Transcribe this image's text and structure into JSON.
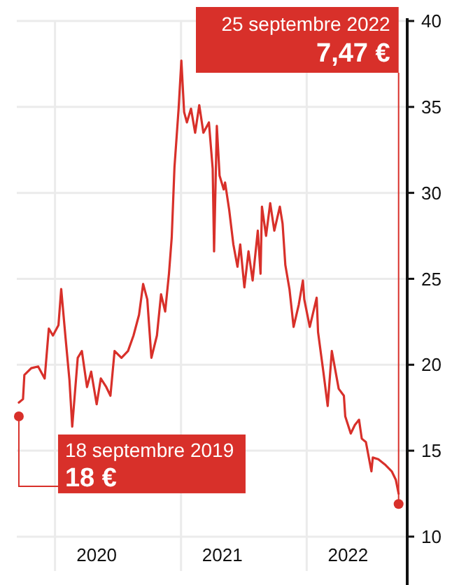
{
  "chart_data": {
    "type": "line",
    "x": [
      "2019-09-18",
      "2019-09-30",
      "2019-10-04",
      "2019-10-24",
      "2019-11-13",
      "2019-12-02",
      "2019-12-14",
      "2019-12-26",
      "2020-01-11",
      "2020-01-19",
      "2020-01-31",
      "2020-02-12",
      "2020-02-20",
      "2020-03-07",
      "2020-03-19",
      "2020-04-03",
      "2020-04-15",
      "2020-05-01",
      "2020-05-13",
      "2020-05-29",
      "2020-06-10",
      "2020-06-22",
      "2020-07-12",
      "2020-07-31",
      "2020-08-16",
      "2020-09-01",
      "2020-09-13",
      "2020-09-25",
      "2020-10-07",
      "2020-10-23",
      "2020-11-04",
      "2020-11-16",
      "2020-11-27",
      "2020-12-05",
      "2020-12-13",
      "2020-12-25",
      "2021-01-02",
      "2021-01-10",
      "2021-01-18",
      "2021-01-30",
      "2021-02-11",
      "2021-02-23",
      "2021-03-07",
      "2021-03-23",
      "2021-04-03",
      "2021-04-07",
      "2021-04-15",
      "2021-04-23",
      "2021-05-05",
      "2021-05-09",
      "2021-05-21",
      "2021-06-02",
      "2021-06-14",
      "2021-06-22",
      "2021-07-04",
      "2021-07-16",
      "2021-07-28",
      "2021-08-12",
      "2021-08-20",
      "2021-08-24",
      "2021-09-05",
      "2021-09-17",
      "2021-09-29",
      "2021-10-15",
      "2021-10-23",
      "2021-10-31",
      "2021-11-12",
      "2021-11-24",
      "2021-12-09",
      "2021-12-21",
      "2021-12-25",
      "2022-01-10",
      "2022-01-30",
      "2022-02-03",
      "2022-02-19",
      "2022-03-03",
      "2022-03-15",
      "2022-04-04",
      "2022-04-19",
      "2022-04-23",
      "2022-05-09",
      "2022-05-21",
      "2022-06-02",
      "2022-06-10",
      "2022-06-22",
      "2022-07-08",
      "2022-07-12",
      "2022-07-28",
      "2022-08-16",
      "2022-09-05",
      "2022-09-17",
      "2022-09-25"
    ],
    "series": [
      {
        "color": "#d8302a",
        "values": [
          17.8,
          18.0,
          19.4,
          19.8,
          19.9,
          19.2,
          22.1,
          21.7,
          22.3,
          24.4,
          21.7,
          19.1,
          16.4,
          20.4,
          20.8,
          18.7,
          19.6,
          17.7,
          19.2,
          18.7,
          18.2,
          20.8,
          20.4,
          20.8,
          21.7,
          22.9,
          24.7,
          23.8,
          20.4,
          21.7,
          24.1,
          23.1,
          25.3,
          27.4,
          31.5,
          34.9,
          37.7,
          34.7,
          34.1,
          34.9,
          33.5,
          35.1,
          33.5,
          34.1,
          31.4,
          26.6,
          33.9,
          31.0,
          30.2,
          30.6,
          29.0,
          27.0,
          25.7,
          27.0,
          24.5,
          26.6,
          24.9,
          27.8,
          25.3,
          29.2,
          27.5,
          29.4,
          27.8,
          29.2,
          28.2,
          25.8,
          24.4,
          22.2,
          23.5,
          24.9,
          23.8,
          22.2,
          23.9,
          21.9,
          19.5,
          17.6,
          20.8,
          18.6,
          18.2,
          17.0,
          16.0,
          16.5,
          16.8,
          15.7,
          15.5,
          13.8,
          14.6,
          14.5,
          14.2,
          13.8,
          13.3,
          12.5
        ]
      }
    ],
    "xlim": [
      "2019-09-12",
      "2022-10-20"
    ],
    "xticks": [
      {
        "value": "2020-01-01",
        "label": null
      },
      {
        "value": "2020-05-01",
        "label": "2020"
      },
      {
        "value": "2021-01-01",
        "label": null
      },
      {
        "value": "2021-05-01",
        "label": "2021"
      },
      {
        "value": "2022-01-01",
        "label": null
      },
      {
        "value": "2022-05-01",
        "label": "2022"
      }
    ],
    "ylim": [
      8,
      40
    ],
    "yticks": [
      10,
      15,
      20,
      25,
      30,
      35,
      40
    ],
    "grid": true,
    "annotations": [
      {
        "text": "25 septembre 2022\n7,47 €",
        "x": "2022-09-25",
        "y": 11.9
      },
      {
        "text": "18 septembre 2019\n18 €",
        "x": "2019-09-18",
        "y": 17
      }
    ]
  }
}
